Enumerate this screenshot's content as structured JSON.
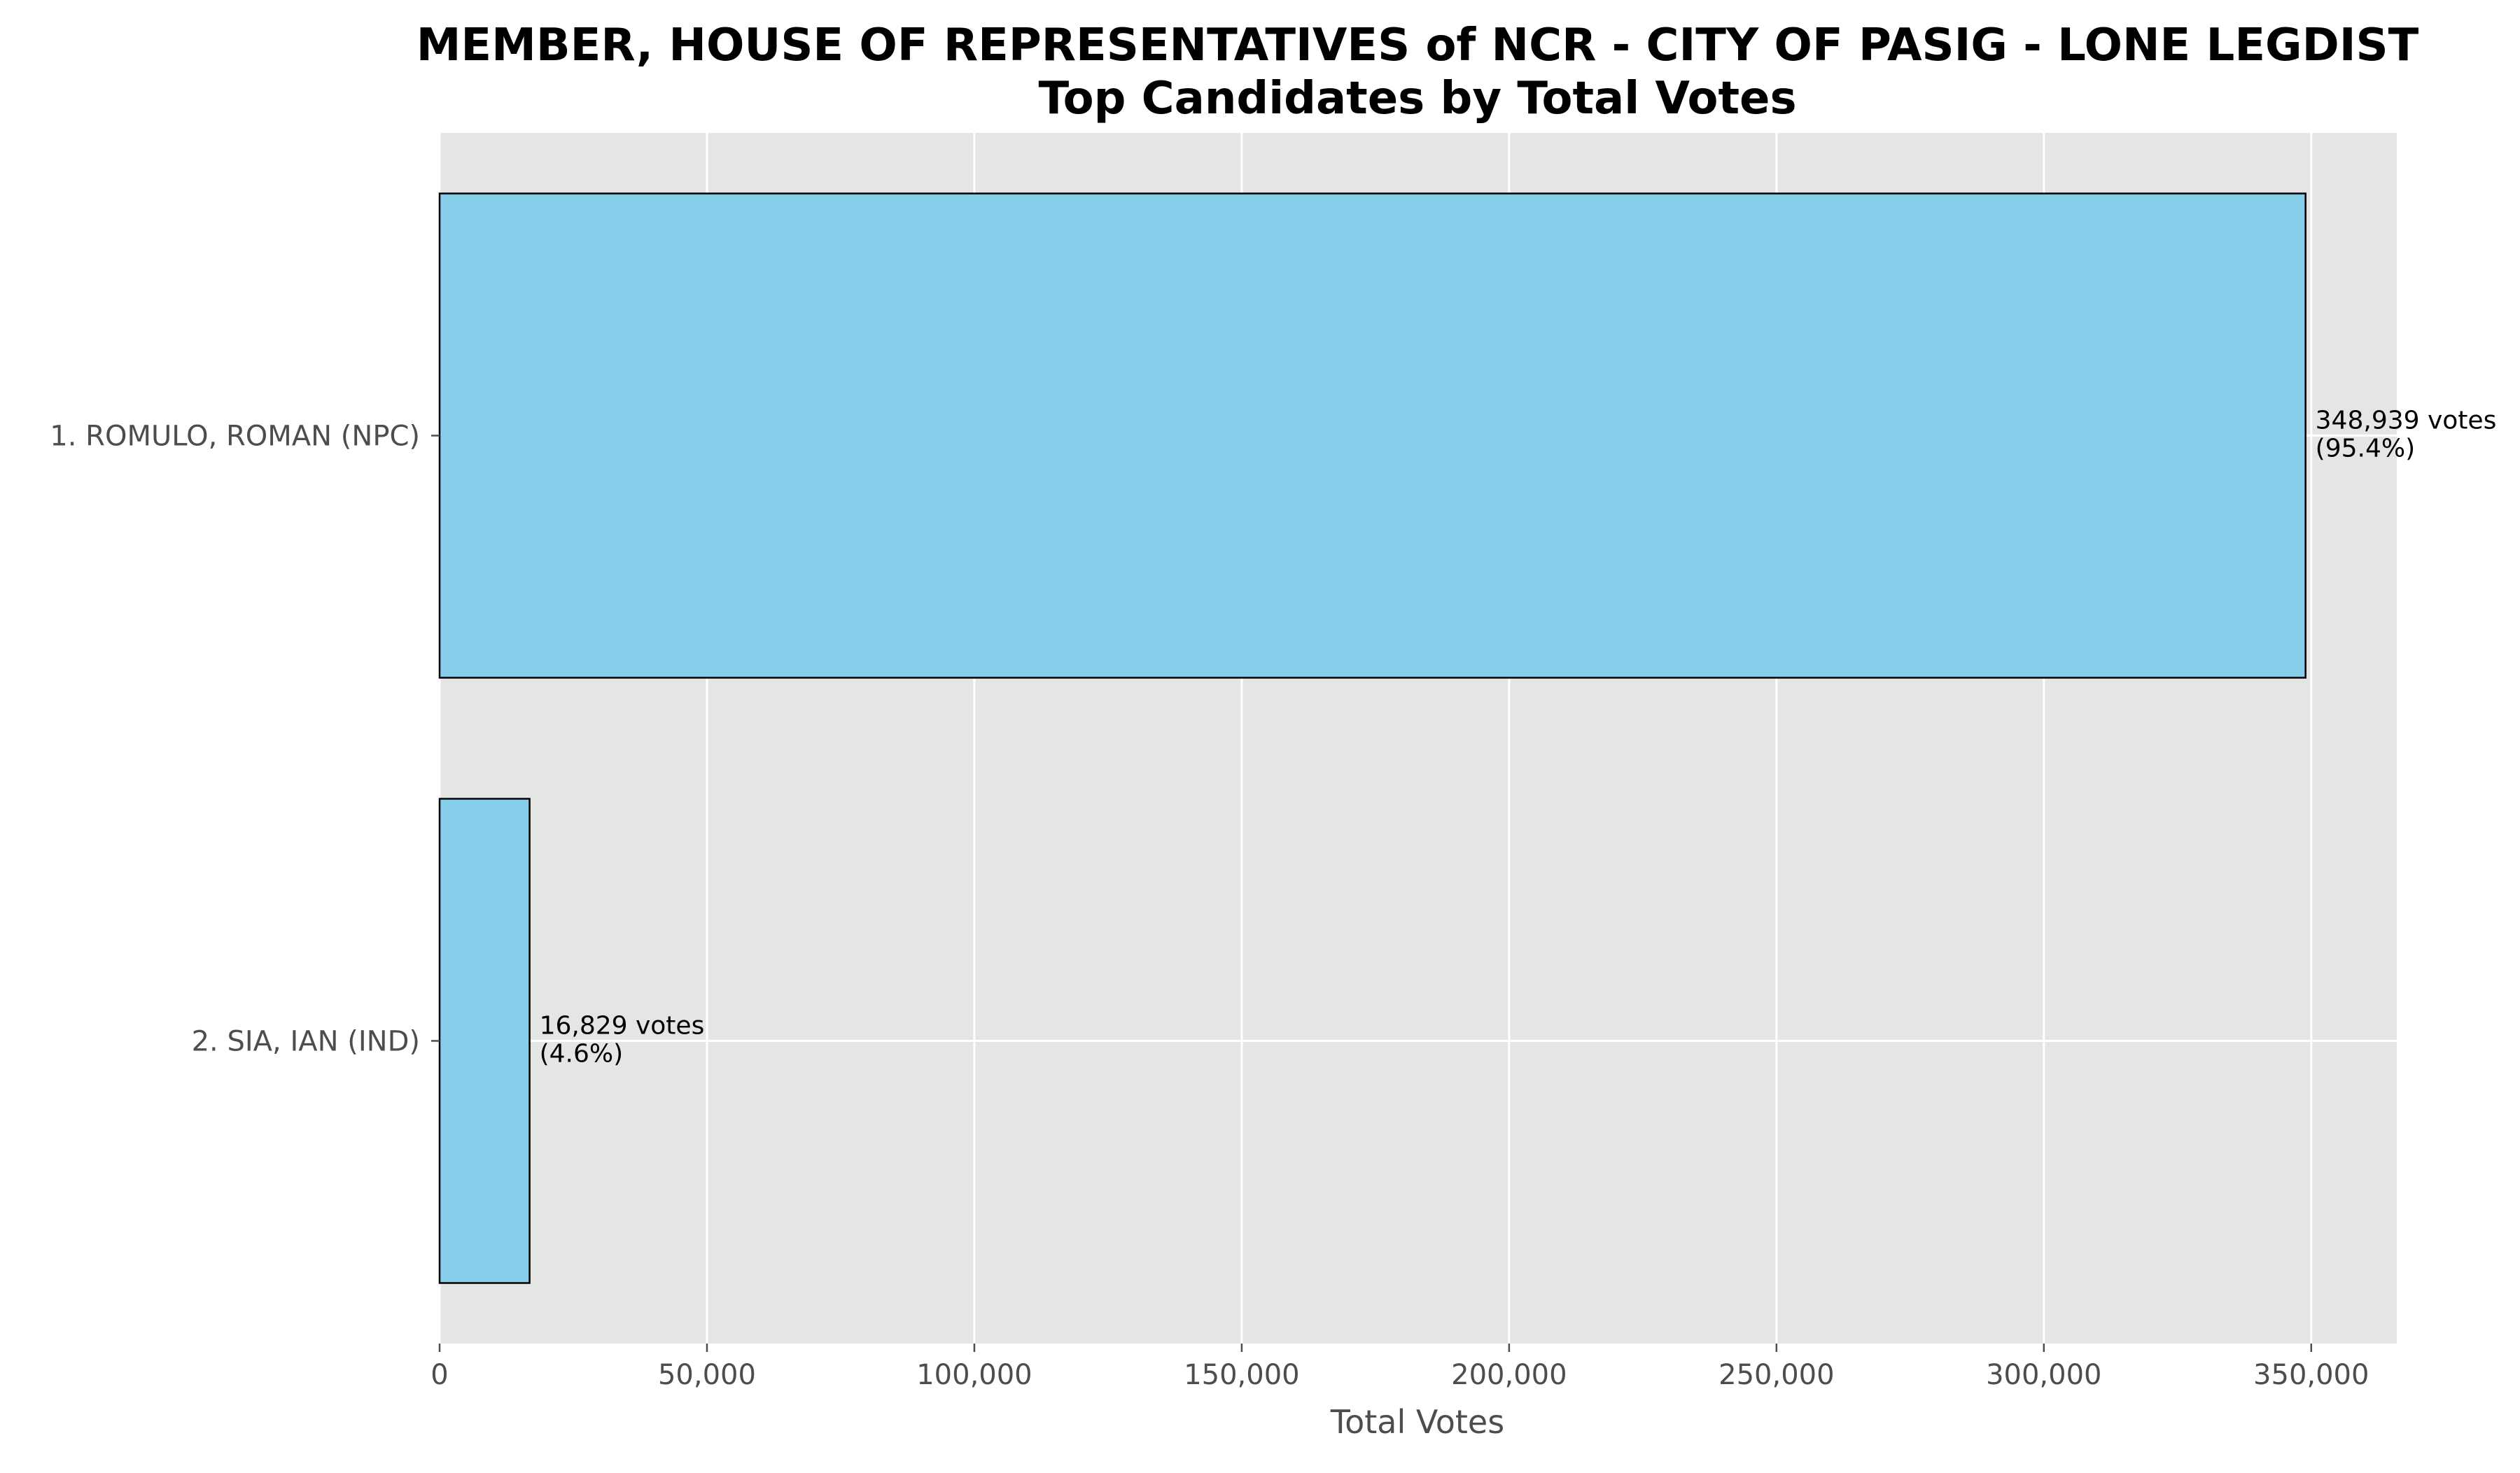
{
  "chart_data": {
    "type": "bar",
    "orientation": "horizontal",
    "title": "MEMBER, HOUSE OF REPRESENTATIVES of NCR - CITY OF PASIG - LONE LEGDIST",
    "subtitle": "Top Candidates by Total Votes",
    "xlabel": "Total Votes",
    "ylabel": "",
    "xlim": [
      0,
      366000
    ],
    "xticks": [
      0,
      50000,
      100000,
      150000,
      200000,
      250000,
      300000,
      350000
    ],
    "xtick_labels": [
      "0",
      "50,000",
      "100,000",
      "150,000",
      "200,000",
      "250,000",
      "300,000",
      "350,000"
    ],
    "grid": true,
    "bar_color": "#87CEEB",
    "bar_edge_color": "#000000",
    "plot_background": "#E5E5E5",
    "categories": [
      "1. ROMULO, ROMAN (NPC)",
      "2. SIA, IAN (IND)"
    ],
    "values": [
      348939,
      16829
    ],
    "value_labels": [
      "348,939 votes",
      "16,829 votes"
    ],
    "percent_labels": [
      "(95.4%)",
      "(4.6%)"
    ]
  }
}
